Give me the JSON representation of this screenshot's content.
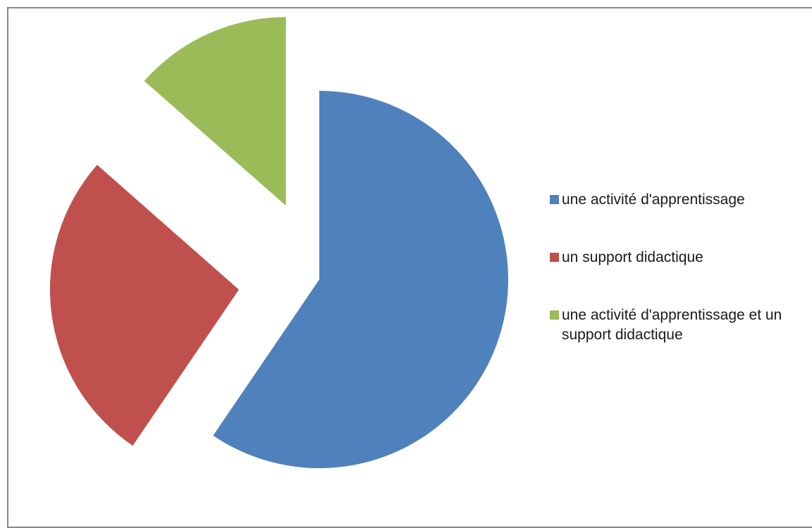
{
  "chart_data": {
    "type": "pie",
    "title": "",
    "exploded": true,
    "legend_position": "right",
    "slices": [
      {
        "label": "une activité d'apprentissage",
        "value": 59.5,
        "color": "#4F81BD"
      },
      {
        "label": "un support didactique",
        "value": 27,
        "color": "#C0504D"
      },
      {
        "label": "une activité d'apprentissage et un support didactique",
        "value": 13.5,
        "color": "#9BBB59"
      }
    ]
  }
}
